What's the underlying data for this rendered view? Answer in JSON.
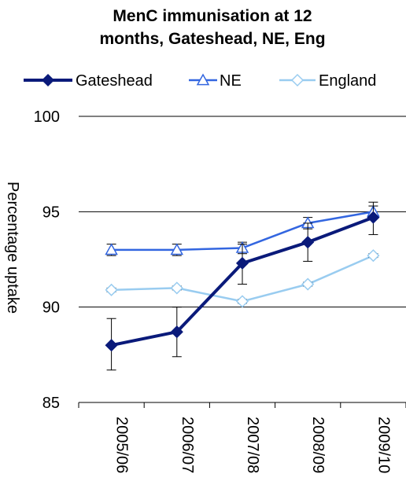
{
  "chart_data": {
    "type": "line",
    "title_line1": "MenC immunisation at 12",
    "title_line2": "months, Gateshead, NE, Eng",
    "xlabel": "",
    "ylabel": "Percentage uptake",
    "categories": [
      "2005/06",
      "2006/07",
      "2007/08",
      "2008/09",
      "2009/10"
    ],
    "ylim": [
      85,
      100
    ],
    "yticks": [
      "85",
      "90",
      "95",
      "100"
    ],
    "grid": true,
    "legend_position": "top",
    "series": [
      {
        "name": "Gateshead",
        "values": [
          88.0,
          88.7,
          92.3,
          93.4,
          94.7
        ],
        "err_low": [
          86.7,
          87.4,
          91.2,
          92.4,
          93.8
        ],
        "err_high": [
          89.4,
          90.0,
          93.3,
          94.4,
          95.5
        ],
        "color": "#0a1a7a",
        "marker": "diamond-filled"
      },
      {
        "name": "NE",
        "values": [
          93.0,
          93.0,
          93.1,
          94.4,
          95.0
        ],
        "err_low": [
          92.7,
          92.7,
          92.8,
          94.1,
          94.7
        ],
        "err_high": [
          93.3,
          93.3,
          93.4,
          94.7,
          95.3
        ],
        "color": "#3366e0",
        "marker": "triangle-open"
      },
      {
        "name": "England",
        "values": [
          90.9,
          91.0,
          90.3,
          91.2,
          92.7
        ],
        "err_low": [
          90.8,
          90.9,
          90.2,
          91.1,
          92.6
        ],
        "err_high": [
          91.0,
          91.1,
          90.4,
          91.3,
          92.8
        ],
        "color": "#99ccf0",
        "marker": "diamond-open"
      }
    ]
  }
}
